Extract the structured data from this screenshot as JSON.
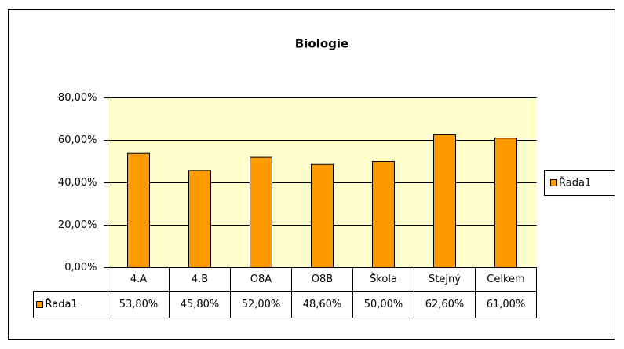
{
  "chart_data": {
    "type": "bar",
    "title": "Biologie",
    "categories": [
      "4.A",
      "4.B",
      "O8A",
      "O8B",
      "Škola",
      "Stejný",
      "Celkem"
    ],
    "series": [
      {
        "name": "Řada1",
        "color": "#ff9900",
        "values": [
          53.8,
          45.8,
          52.0,
          48.6,
          50.0,
          62.6,
          61.0
        ],
        "value_labels": [
          "53,80%",
          "45,80%",
          "52,00%",
          "48,60%",
          "50,00%",
          "62,60%",
          "61,00%"
        ]
      }
    ],
    "ylim": [
      0,
      80
    ],
    "yticks": [
      {
        "value": 0,
        "label": "0,00%"
      },
      {
        "value": 20,
        "label": "20,00%"
      },
      {
        "value": 40,
        "label": "40,00%"
      },
      {
        "value": 60,
        "label": "60,00%"
      },
      {
        "value": 80,
        "label": "80,00%"
      }
    ],
    "grid": true,
    "legend": "right",
    "plot_background": "#ffffcc"
  }
}
